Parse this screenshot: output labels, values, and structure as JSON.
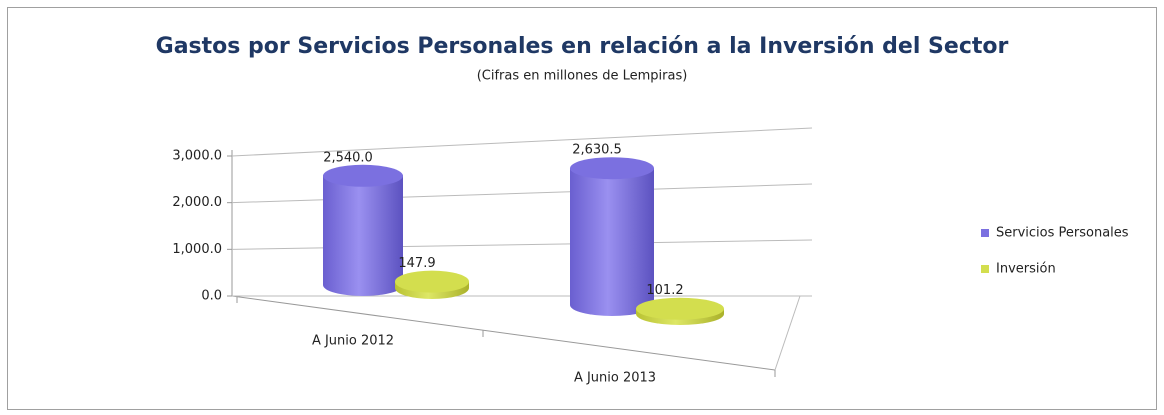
{
  "chart_data": {
    "type": "bar3d",
    "title": "Gastos por Servicios Personales en relación a la Inversión del Sector",
    "subtitle": "(Cifras en millones de Lempiras)",
    "categories": [
      "A Junio 2012",
      "A Junio 2013"
    ],
    "series": [
      {
        "name": "Servicios Personales",
        "color": "#7b70e0",
        "values": [
          2540.0,
          2630.5
        ],
        "value_labels": [
          "2,540.0",
          "2,630.5"
        ]
      },
      {
        "name": "Inversión",
        "color": "#d3de4e",
        "values": [
          147.9,
          101.2
        ],
        "value_labels": [
          "147.9",
          "101.2"
        ]
      }
    ],
    "ylim": [
      0,
      3000
    ],
    "yticks": [
      {
        "value": 0,
        "label": "0.0"
      },
      {
        "value": 1000,
        "label": "1,000.0"
      },
      {
        "value": 2000,
        "label": "2,000.0"
      },
      {
        "value": 3000,
        "label": "3,000.0"
      }
    ],
    "grid": true,
    "legend": "right"
  }
}
